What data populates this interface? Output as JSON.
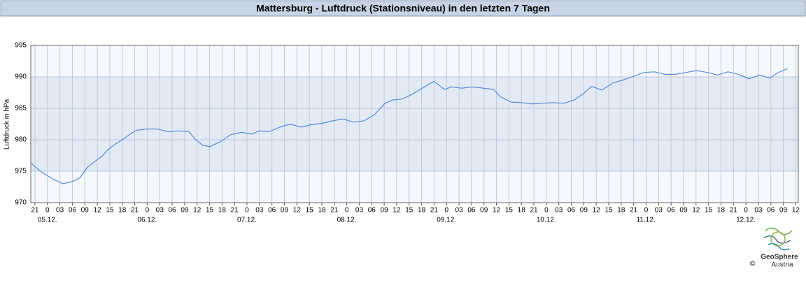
{
  "chart_data": {
    "type": "line",
    "title": "Mattersburg - Luftdruck (Stationsniveau) in den letzten 7 Tagen",
    "y_label": "Luftdruck in hPa",
    "color": "#5b8ad8",
    "x": [
      -4.0,
      -1.3,
      1.2,
      3.7,
      6.2,
      7.9,
      9.6,
      11.3,
      13.0,
      14.7,
      16.3,
      18.0,
      19.7,
      21.4,
      23.9,
      26.5,
      29.0,
      31.5,
      34.0,
      35.7,
      37.4,
      39.1,
      41.6,
      44.1,
      46.7,
      49.2,
      50.9,
      53.4,
      55.9,
      58.4,
      61.0,
      63.5,
      66.0,
      68.5,
      71.1,
      73.6,
      76.1,
      78.7,
      81.2,
      82.9,
      85.4,
      87.9,
      90.4,
      93.0,
      95.5,
      97.2,
      99.7,
      102.2,
      104.8,
      107.3,
      109.0,
      111.5,
      114.0,
      116.5,
      119.1,
      121.6,
      124.1,
      126.7,
      129.2,
      130.9,
      133.4,
      135.9,
      138.4,
      141.0,
      143.5,
      146.0,
      148.5,
      151.1,
      153.6,
      156.1,
      158.7,
      161.2,
      163.7,
      166.2,
      168.8,
      171.3,
      173.8,
      175.5,
      178.0
    ],
    "values": [
      976.3,
      974.8,
      973.8,
      973.0,
      973.4,
      974.0,
      975.6,
      976.5,
      977.3,
      978.5,
      979.3,
      980.0,
      980.8,
      981.5,
      981.7,
      981.7,
      981.3,
      981.4,
      981.3,
      980.0,
      979.1,
      978.9,
      979.7,
      980.8,
      981.2,
      980.9,
      981.4,
      981.3,
      982.0,
      982.5,
      982.0,
      982.4,
      982.6,
      983.0,
      983.3,
      982.8,
      983.0,
      984.0,
      985.8,
      986.3,
      986.5,
      987.3,
      988.3,
      989.3,
      988.0,
      988.4,
      988.2,
      988.4,
      988.2,
      988.0,
      986.8,
      986.0,
      985.9,
      985.7,
      985.8,
      985.9,
      985.8,
      986.3,
      987.5,
      988.5,
      987.9,
      989.0,
      989.5,
      990.1,
      990.7,
      990.8,
      990.4,
      990.4,
      990.7,
      991.0,
      990.7,
      990.3,
      990.8,
      990.4,
      989.7,
      990.3,
      989.8,
      990.6,
      991.3
    ],
    "xlim": [
      -4,
      180.6
    ],
    "ylim": [
      970,
      995
    ],
    "yticks": [
      970,
      975,
      980,
      985,
      990,
      995
    ],
    "xticks": [
      {
        "value": -3,
        "label": "21"
      },
      {
        "value": 0,
        "label": "0"
      },
      {
        "value": 3,
        "label": "03"
      },
      {
        "value": 6,
        "label": "06"
      },
      {
        "value": 9,
        "label": "09"
      },
      {
        "value": 12,
        "label": "12"
      },
      {
        "value": 15,
        "label": "15"
      },
      {
        "value": 18,
        "label": "18"
      },
      {
        "value": 21,
        "label": "21"
      },
      {
        "value": 24,
        "label": "0"
      },
      {
        "value": 27,
        "label": "03"
      },
      {
        "value": 30,
        "label": "06"
      },
      {
        "value": 33,
        "label": "09"
      },
      {
        "value": 36,
        "label": "12"
      },
      {
        "value": 39,
        "label": "15"
      },
      {
        "value": 42,
        "label": "18"
      },
      {
        "value": 45,
        "label": "21"
      },
      {
        "value": 48,
        "label": "0"
      },
      {
        "value": 51,
        "label": "03"
      },
      {
        "value": 54,
        "label": "06"
      },
      {
        "value": 57,
        "label": "09"
      },
      {
        "value": 60,
        "label": "12"
      },
      {
        "value": 63,
        "label": "15"
      },
      {
        "value": 66,
        "label": "18"
      },
      {
        "value": 69,
        "label": "21"
      },
      {
        "value": 72,
        "label": "0"
      },
      {
        "value": 75,
        "label": "03"
      },
      {
        "value": 78,
        "label": "06"
      },
      {
        "value": 81,
        "label": "09"
      },
      {
        "value": 84,
        "label": "12"
      },
      {
        "value": 87,
        "label": "15"
      },
      {
        "value": 90,
        "label": "18"
      },
      {
        "value": 93,
        "label": "21"
      },
      {
        "value": 96,
        "label": "0"
      },
      {
        "value": 99,
        "label": "03"
      },
      {
        "value": 102,
        "label": "06"
      },
      {
        "value": 105,
        "label": "09"
      },
      {
        "value": 108,
        "label": "12"
      },
      {
        "value": 111,
        "label": "15"
      },
      {
        "value": 114,
        "label": "18"
      },
      {
        "value": 117,
        "label": "21"
      },
      {
        "value": 120,
        "label": "0"
      },
      {
        "value": 123,
        "label": "03"
      },
      {
        "value": 126,
        "label": "06"
      },
      {
        "value": 129,
        "label": "09"
      },
      {
        "value": 132,
        "label": "12"
      },
      {
        "value": 135,
        "label": "15"
      },
      {
        "value": 138,
        "label": "18"
      },
      {
        "value": 141,
        "label": "21"
      },
      {
        "value": 144,
        "label": "0"
      },
      {
        "value": 147,
        "label": "03"
      },
      {
        "value": 150,
        "label": "06"
      },
      {
        "value": 153,
        "label": "09"
      },
      {
        "value": 156,
        "label": "12"
      },
      {
        "value": 159,
        "label": "15"
      },
      {
        "value": 162,
        "label": "18"
      },
      {
        "value": 165,
        "label": "21"
      },
      {
        "value": 168,
        "label": "0"
      },
      {
        "value": 171,
        "label": "03"
      },
      {
        "value": 174,
        "label": "06"
      },
      {
        "value": 177,
        "label": "09"
      },
      {
        "value": 180,
        "label": "12"
      }
    ],
    "date_labels": [
      {
        "value": 0,
        "label": "05.12."
      },
      {
        "value": 24,
        "label": "06.12."
      },
      {
        "value": 48,
        "label": "07.12."
      },
      {
        "value": 72,
        "label": "08.12."
      },
      {
        "value": 96,
        "label": "09.12."
      },
      {
        "value": 120,
        "label": "10.12."
      },
      {
        "value": 144,
        "label": "11.12."
      },
      {
        "value": 168,
        "label": "12.12."
      }
    ],
    "grid": true,
    "logo": {
      "name": "GeoSphere",
      "sub": "Austria",
      "copyright": "©"
    }
  }
}
